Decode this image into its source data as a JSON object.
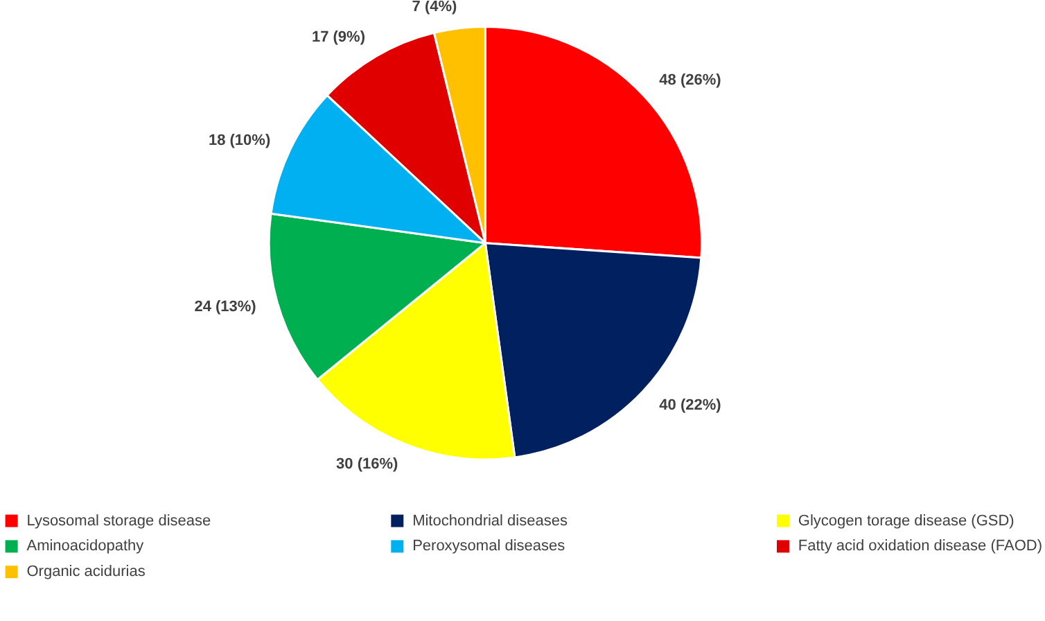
{
  "chart_data": {
    "type": "pie",
    "categories": [
      "Lysosomal storage disease",
      "Mitochondrial diseases",
      "Glycogen torage disease (GSD)",
      "Aminoacidopathy",
      "Peroxysomal diseases",
      "Fatty acid oxidation disease (FAOD)",
      "Organic acidurias"
    ],
    "values": [
      48,
      40,
      30,
      24,
      18,
      17,
      7
    ],
    "colors": [
      "#ff0000",
      "#002060",
      "#ffff00",
      "#00b050",
      "#00b0f0",
      "#e00000",
      "#ffc000"
    ],
    "value_labels": [
      "48 (26%)",
      "40 (22%)",
      "30 (16%)",
      "24 (13%)",
      "18 (10%)",
      "17 (9%)",
      "7 (4%)"
    ],
    "legend": "bottom"
  }
}
